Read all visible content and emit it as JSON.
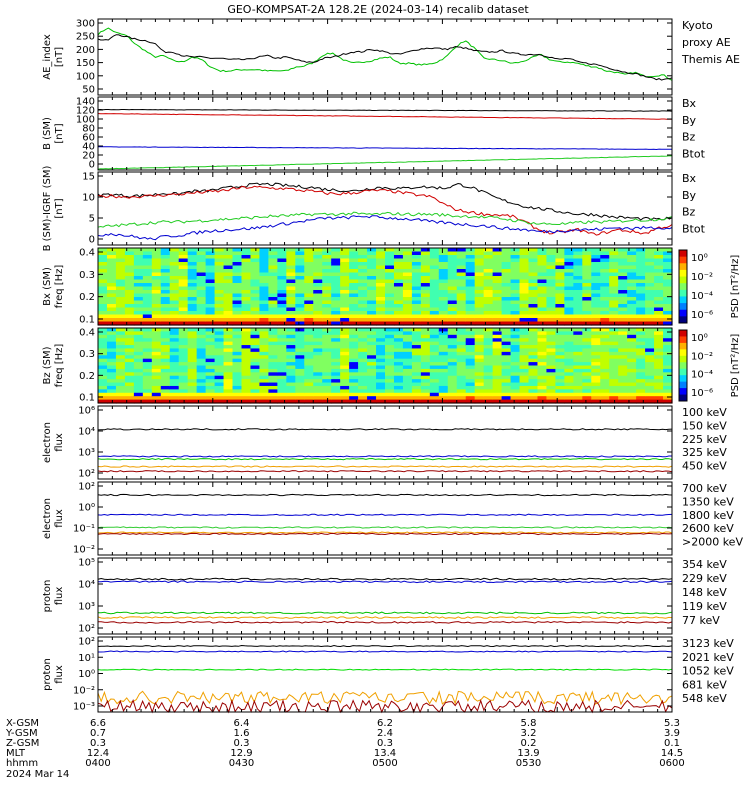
{
  "title": "GEO-KOMPSAT-2A 128.2E (2024-03-14) recalib dataset",
  "colors": {
    "black": "#000000",
    "red": "#d00000",
    "green": "#00c000",
    "blue": "#0000d0",
    "orange": "#f0a000",
    "darkred": "#9a0000",
    "lightgreen": "#33cc33",
    "brightgreen": "#00dd00",
    "lime": "#22cc22"
  },
  "chart_data": [
    {
      "id": "ae",
      "type": "line",
      "ylabel": "AE_index\n[nT]",
      "yticks": [
        "300",
        "250",
        "200",
        "150",
        "100",
        "50"
      ],
      "ylim": [
        0,
        300
      ],
      "legend": [
        {
          "text": "Kyoto",
          "color": "green"
        },
        {
          "text": "proxy AE",
          "color": "green"
        },
        {
          "text": "Themis AE",
          "color": "black"
        }
      ],
      "series": [
        {
          "name": "Kyoto proxy AE",
          "color": "green",
          "values": [
            240,
            265,
            245,
            235,
            200,
            175,
            150,
            155,
            135,
            130,
            150,
            140,
            110,
            95,
            95,
            100,
            100,
            100,
            95,
            95,
            95,
            110,
            115,
            130,
            160,
            165,
            140,
            125,
            130,
            135,
            145,
            150,
            125,
            125,
            120,
            120,
            130,
            150,
            190,
            215,
            185,
            145,
            140,
            135,
            125,
            130,
            145,
            160,
            140,
            130,
            130,
            125,
            115,
            110,
            95,
            90,
            80,
            90,
            75,
            75,
            80,
            60
          ]
        },
        {
          "name": "Themis AE",
          "color": "black",
          "values": [
            220,
            215,
            240,
            230,
            220,
            215,
            205,
            170,
            170,
            155,
            150,
            150,
            145,
            145,
            140,
            140,
            140,
            150,
            155,
            145,
            150,
            140,
            130,
            130,
            145,
            150,
            160,
            170,
            170,
            180,
            175,
            165,
            160,
            170,
            180,
            185,
            185,
            180,
            190,
            185,
            175,
            170,
            170,
            175,
            165,
            160,
            160,
            160,
            150,
            140,
            145,
            130,
            125,
            120,
            110,
            100,
            90,
            85,
            75,
            65,
            60,
            70
          ]
        }
      ]
    },
    {
      "id": "bsm",
      "type": "line",
      "ylabel": "B (SM)\n[nT]",
      "yticks": [
        "140",
        "120",
        "100",
        "80",
        "60",
        "40",
        "20",
        "0"
      ],
      "ylim": [
        0,
        145
      ],
      "legend": [
        {
          "text": "Bx",
          "color": "blue"
        },
        {
          "text": "By",
          "color": "lime"
        },
        {
          "text": "Bz",
          "color": "red"
        },
        {
          "text": "Btot",
          "color": "black"
        }
      ],
      "series": [
        {
          "name": "Btot",
          "color": "black",
          "from": 120,
          "to": 117
        },
        {
          "name": "Bz",
          "color": "red",
          "from": 112,
          "to": 101
        },
        {
          "name": "Bx",
          "color": "blue",
          "from": 46,
          "to": 41
        },
        {
          "name": "By",
          "color": "lime",
          "from": 2,
          "to": 28
        }
      ]
    },
    {
      "id": "bdiff",
      "type": "line",
      "ylabel": "B (SM)-IGRF (SM)\n[nT]",
      "yticks": [
        "15",
        "10",
        "5",
        "0"
      ],
      "ylim": [
        -3,
        16
      ],
      "legend": [
        {
          "text": "Bx",
          "color": "blue"
        },
        {
          "text": "By",
          "color": "lime"
        },
        {
          "text": "Bz",
          "color": "red"
        },
        {
          "text": "Btot",
          "color": "black"
        }
      ],
      "series": [
        {
          "name": "Btot",
          "color": "black",
          "values": [
            10,
            10.2,
            9.8,
            9.8,
            10,
            10.5,
            10.2,
            11,
            11,
            11.5,
            12,
            12.5,
            12.8,
            12.8,
            12.5,
            12.2,
            12,
            11.5,
            11.3,
            11,
            11.5,
            12,
            11.8,
            11.7,
            12.2,
            12,
            11.8,
            12.8,
            12,
            10.5,
            9,
            8,
            7,
            6.5,
            6,
            5.5,
            5,
            5,
            4.5,
            4.2,
            4,
            3.8,
            3.6,
            4
          ]
        },
        {
          "name": "Bz",
          "color": "red",
          "values": [
            9.5,
            9.8,
            9.5,
            9.6,
            9.8,
            10,
            10.2,
            10.5,
            10.8,
            11,
            11.5,
            12,
            12,
            11.8,
            11.7,
            11.3,
            11,
            10.5,
            10.3,
            10.5,
            11,
            11.2,
            11,
            10.5,
            10,
            9.5,
            7.5,
            6,
            5.5,
            5,
            4.8,
            4.5,
            3,
            1,
            0,
            0.5,
            1,
            -0.2,
            0.2,
            1,
            0.5,
            0,
            1.5,
            2
          ]
        },
        {
          "name": "By",
          "color": "lime",
          "values": [
            1.5,
            2,
            2.2,
            2.5,
            2.8,
            3,
            3,
            3.2,
            3.4,
            3.6,
            3.8,
            4,
            4.2,
            4.5,
            4.6,
            4.8,
            5,
            5,
            5,
            5.2,
            5,
            5,
            5.2,
            5,
            5,
            5,
            4.8,
            4.5,
            4.5,
            4.2,
            4,
            3.5,
            3,
            2.5,
            2.5,
            2.5,
            2.8,
            3,
            3,
            3.2,
            3.5,
            3.5,
            3.8,
            4
          ]
        },
        {
          "name": "Bx",
          "color": "blue",
          "values": [
            -0.5,
            0,
            -0.5,
            -1,
            -1.5,
            -0.8,
            -0.5,
            0,
            0.5,
            0.8,
            1,
            1.2,
            1.5,
            2,
            2.5,
            3,
            3.5,
            4,
            4,
            4.2,
            4.5,
            4.2,
            4,
            3.8,
            3.5,
            3,
            2.8,
            2.5,
            2.2,
            2,
            1.5,
            1.2,
            1,
            0.5,
            0.5,
            0.8,
            1,
            1,
            1.2,
            1.5,
            1.3,
            1.5,
            1.5,
            1.5
          ]
        }
      ]
    },
    {
      "id": "bxspec",
      "type": "heatmap",
      "ylabel": "Bx (SM)\nfreq [Hz]",
      "yticks": [
        "0.4",
        "0.3",
        "0.2",
        "0.1"
      ],
      "ylim": [
        0,
        0.5
      ],
      "colorbar": {
        "label": "PSD [nT²/Hz]",
        "ticks": [
          "10⁰",
          "10⁻²",
          "10⁻⁴",
          "10⁻⁶"
        ]
      }
    },
    {
      "id": "bzspec",
      "type": "heatmap",
      "ylabel": "Bz (SM)\nfreq [Hz]",
      "yticks": [
        "0.4",
        "0.3",
        "0.2",
        "0.1"
      ],
      "ylim": [
        0,
        0.5
      ],
      "colorbar": {
        "label": "PSD [nT²/Hz]",
        "ticks": [
          "10⁰",
          "10⁻²",
          "10⁻⁴",
          "10⁻⁶"
        ]
      }
    },
    {
      "id": "e1",
      "type": "line",
      "log": true,
      "ylabel": "electron\nflux",
      "yticks": [
        "10⁶",
        "10⁴",
        "10³",
        "10²"
      ],
      "legend": [
        {
          "text": "100 keV",
          "color": "black"
        },
        {
          "text": "150 keV",
          "color": "blue"
        },
        {
          "text": "225 keV",
          "color": "green"
        },
        {
          "text": "325 keV",
          "color": "orange"
        },
        {
          "text": "450 keV",
          "color": "darkred"
        }
      ],
      "series": [
        {
          "name": "100 keV",
          "color": "black",
          "level": 50000
        },
        {
          "name": "150 keV",
          "color": "blue",
          "level": 900
        },
        {
          "name": "225 keV",
          "color": "green",
          "level": 600
        },
        {
          "name": "325 keV",
          "color": "orange",
          "level": 200
        },
        {
          "name": "450 keV",
          "color": "darkred",
          "level": 100
        }
      ]
    },
    {
      "id": "e2",
      "type": "line",
      "log": true,
      "ylabel": "electron\nflux",
      "yticks": [
        "10²",
        "10⁰",
        "10⁻¹",
        "10⁻²"
      ],
      "legend": [
        {
          "text": "700 keV",
          "color": "black"
        },
        {
          "text": "1350 keV",
          "color": "blue"
        },
        {
          "text": "1800 keV",
          "color": "lightgreen"
        },
        {
          "text": "2600 keV",
          "color": "orange"
        },
        {
          "text": ">2000 keV",
          "color": "darkred"
        }
      ],
      "series": [
        {
          "name": "700 keV",
          "color": "black",
          "level": 25
        },
        {
          "name": "1350 keV",
          "color": "blue",
          "level": 1.5
        },
        {
          "name": "1800 keV",
          "color": "lightgreen",
          "level": 0.25
        },
        {
          "name": "2600 keV",
          "color": "orange",
          "level": 0.12
        },
        {
          "name": ">2000 keV",
          "color": "darkred",
          "level": 0.1
        }
      ]
    },
    {
      "id": "p1",
      "type": "line",
      "log": true,
      "ylabel": "proton\nflux",
      "yticks": [
        "10⁵",
        "10⁴",
        "10³",
        "10²"
      ],
      "legend": [
        {
          "text": "354 keV",
          "color": "darkred"
        },
        {
          "text": "229 keV",
          "color": "orange"
        },
        {
          "text": "148 keV",
          "color": "green"
        },
        {
          "text": "119 keV",
          "color": "blue"
        },
        {
          "text": "77 keV",
          "color": "black"
        }
      ],
      "series": [
        {
          "name": "77 keV",
          "color": "black",
          "level": 20000
        },
        {
          "name": "119 keV",
          "color": "blue",
          "level": 15000
        },
        {
          "name": "148 keV",
          "color": "green",
          "level": 500
        },
        {
          "name": "229 keV",
          "color": "orange",
          "level": 300
        },
        {
          "name": "354 keV",
          "color": "darkred",
          "level": 180
        }
      ]
    },
    {
      "id": "p2",
      "type": "line",
      "log": true,
      "ylabel": "proton\nflux",
      "yticks": [
        "10²",
        "10¹",
        "10⁰",
        "10⁻²",
        "10⁻³"
      ],
      "legend": [
        {
          "text": "3123 keV",
          "color": "darkred"
        },
        {
          "text": "2021 keV",
          "color": "orange"
        },
        {
          "text": "1052 keV",
          "color": "brightgreen"
        },
        {
          "text": "681 keV",
          "color": "blue"
        },
        {
          "text": "548 keV",
          "color": "black"
        }
      ],
      "series": [
        {
          "name": "548 keV",
          "color": "black",
          "level": 40
        },
        {
          "name": "681 keV",
          "color": "blue",
          "level": 15
        },
        {
          "name": "1052 keV",
          "color": "brightgreen",
          "level": 0.6
        },
        {
          "name": "2021 keV",
          "color": "orange",
          "level": 0.004
        },
        {
          "name": "3123 keV",
          "color": "darkred",
          "level": 0.0008
        }
      ]
    }
  ],
  "footer": {
    "rows": [
      {
        "label": "X-GSM",
        "values": [
          "6.6",
          "6.4",
          "6.2",
          "5.8",
          "5.3"
        ]
      },
      {
        "label": "Y-GSM",
        "values": [
          "0.7",
          "1.6",
          "2.4",
          "3.2",
          "3.9"
        ]
      },
      {
        "label": "Z-GSM",
        "values": [
          "0.3",
          "0.3",
          "0.3",
          "0.2",
          "0.1"
        ]
      },
      {
        "label": "MLT",
        "values": [
          "12.4",
          "12.9",
          "13.4",
          "13.9",
          "14.5"
        ]
      },
      {
        "label": "hhmm",
        "values": [
          "0400",
          "0430",
          "0500",
          "0530",
          "0600"
        ]
      }
    ],
    "date": "2024 Mar 14"
  }
}
